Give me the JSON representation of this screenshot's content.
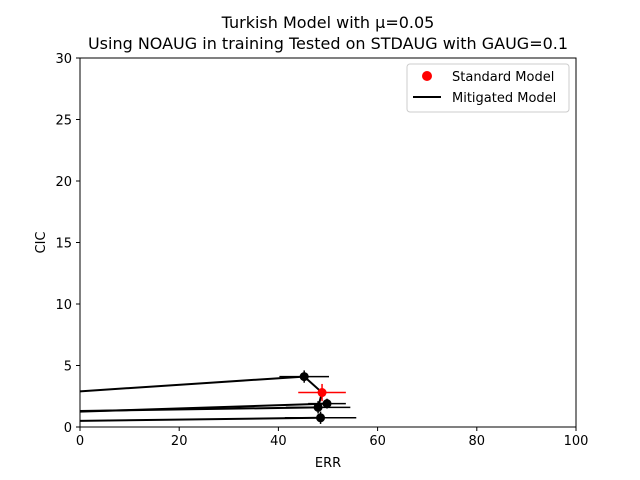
{
  "chart_data": {
    "type": "scatter",
    "title": "Turkish Model with μ=0.05",
    "subtitle": "Using NOAUG in training Tested on STDAUG with GAUG=0.1",
    "xlabel": "ERR",
    "ylabel": "CIC",
    "xlim": [
      0,
      100
    ],
    "ylim": [
      0,
      30
    ],
    "x_ticks": [
      0,
      20,
      40,
      60,
      80,
      100
    ],
    "y_ticks": [
      0,
      5,
      10,
      15,
      20,
      25,
      30
    ],
    "x_tick_labels": [
      "0",
      "20",
      "40",
      "60",
      "80",
      "100"
    ],
    "y_tick_labels": [
      "0",
      "5",
      "10",
      "15",
      "20",
      "25",
      "30"
    ],
    "grid": false,
    "legend_position": "top-right",
    "legend": [
      {
        "label": "Standard Model",
        "color": "#ff0000",
        "kind": "marker"
      },
      {
        "label": "Mitigated Model",
        "color": "#000000",
        "kind": "line"
      }
    ],
    "series": [
      {
        "name": "Standard Model",
        "color": "#ff0000",
        "points": [
          {
            "x": 48.8,
            "y": 2.8,
            "xerr": 4.8,
            "yerr": 0.7
          }
        ]
      },
      {
        "name": "Mitigated Model",
        "color": "#000000",
        "points": [
          {
            "x": 45.2,
            "y": 4.1,
            "xerr": 5.0,
            "yerr": 0.5
          },
          {
            "x": 48.0,
            "y": 1.6,
            "xerr": 6.5,
            "yerr": 0.5
          },
          {
            "x": 49.8,
            "y": 1.9,
            "xerr": 3.8,
            "yerr": 0.4
          },
          {
            "x": 48.5,
            "y": 0.75,
            "xerr": 7.2,
            "yerr": 0.5
          }
        ],
        "lines": [
          {
            "x": [
              0,
              45.2
            ],
            "y": [
              2.9,
              4.1
            ]
          },
          {
            "x": [
              0,
              49.8
            ],
            "y": [
              1.25,
              1.9
            ]
          },
          {
            "x": [
              0,
              48.0
            ],
            "y": [
              1.3,
              1.6
            ]
          },
          {
            "x": [
              0,
              48.5
            ],
            "y": [
              0.5,
              0.75
            ]
          },
          {
            "x": [
              45.2,
              48.8
            ],
            "y": [
              4.1,
              2.8
            ]
          },
          {
            "x": [
              48.8,
              48.0
            ],
            "y": [
              2.8,
              1.6
            ]
          }
        ]
      }
    ]
  }
}
